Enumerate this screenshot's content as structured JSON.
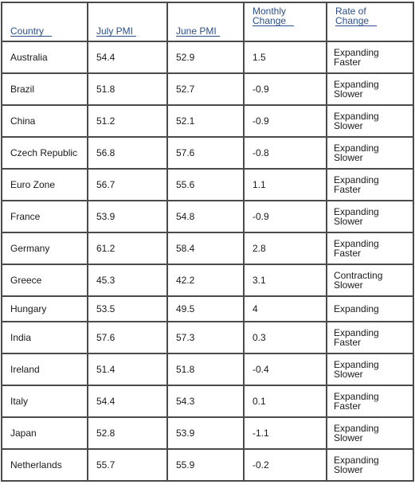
{
  "table": {
    "headers": {
      "country": "Country",
      "july": "July PMI",
      "june": "June PMI",
      "monthly_line1": "Monthly",
      "monthly_line2": "Change",
      "rate_line1": "Rate of",
      "rate_line2": "Change"
    },
    "rows": [
      {
        "country": "Australia",
        "july": "54.4",
        "june": "52.9",
        "change": "1.5",
        "rate1": "Expanding",
        "rate2": "Faster"
      },
      {
        "country": "Brazil",
        "july": "51.8",
        "june": "52.7",
        "change": "-0.9",
        "rate1": "Expanding",
        "rate2": "Slower"
      },
      {
        "country": "China",
        "july": "51.2",
        "june": "52.1",
        "change": "-0.9",
        "rate1": "Expanding",
        "rate2": "Slower"
      },
      {
        "country": "Czech Republic",
        "july": "56.8",
        "june": "57.6",
        "change": "-0.8",
        "rate1": "Expanding",
        "rate2": "Slower"
      },
      {
        "country": "Euro Zone",
        "july": "56.7",
        "june": "55.6",
        "change": "1.1",
        "rate1": "Expanding",
        "rate2": "Faster"
      },
      {
        "country": "France",
        "july": "53.9",
        "june": "54.8",
        "change": "-0.9",
        "rate1": "Expanding",
        "rate2": "Slower"
      },
      {
        "country": "Germany",
        "july": "61.2",
        "june": "58.4",
        "change": "2.8",
        "rate1": "Expanding",
        "rate2": "Faster"
      },
      {
        "country": "Greece",
        "july": "45.3",
        "june": "42.2",
        "change": "3.1",
        "rate1": "Contracting",
        "rate2": "Slower"
      },
      {
        "country": "Hungary",
        "july": "53.5",
        "june": "49.5",
        "change": "4",
        "rate1": "Expanding",
        "rate2": ""
      },
      {
        "country": "India",
        "july": "57.6",
        "june": "57.3",
        "change": "0.3",
        "rate1": "Expanding",
        "rate2": "Faster"
      },
      {
        "country": "Ireland",
        "july": "51.4",
        "june": "51.8",
        "change": "-0.4",
        "rate1": "Expanding",
        "rate2": "Slower"
      },
      {
        "country": "Italy",
        "july": "54.4",
        "june": "54.3",
        "change": "0.1",
        "rate1": "Expanding",
        "rate2": "Faster"
      },
      {
        "country": "Japan",
        "july": "52.8",
        "june": "53.9",
        "change": "-1.1",
        "rate1": "Expanding",
        "rate2": "Slower"
      },
      {
        "country": "Netherlands",
        "july": "55.7",
        "june": "55.9",
        "change": "-0.2",
        "rate1": "Expanding",
        "rate2": "Slower"
      }
    ]
  },
  "colors": {
    "header_text": "#2a4f8a",
    "border": "#4b4b4b",
    "body_text": "#1a1a1a"
  }
}
